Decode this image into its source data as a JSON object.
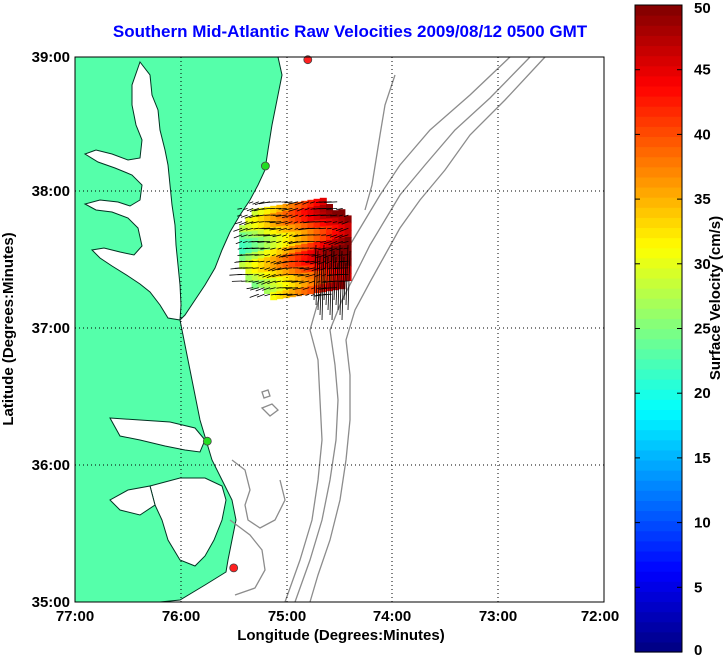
{
  "title": "Southern Mid-Atlantic Raw Velocities 2009/08/12 0500 GMT",
  "axes": {
    "xlabel": "Longitude (Degrees:Minutes)",
    "ylabel": "Latitude (Degrees:Minutes)",
    "x_ticks": [
      "77:00",
      "76:00",
      "75:00",
      "74:00",
      "73:00",
      "72:00"
    ],
    "y_ticks": [
      "39:00",
      "38:00",
      "37:00",
      "36:00",
      "35:00"
    ],
    "grid": "dotted"
  },
  "colorbar": {
    "label": "Surface Velocity (cm/s)",
    "ticks": [
      "0",
      "5",
      "10",
      "15",
      "20",
      "25",
      "30",
      "35",
      "40",
      "45",
      "50"
    ],
    "min": 0,
    "max": 50
  },
  "colors": {
    "land": "#55ffaa",
    "coastline": "#003322",
    "bathymetry": "#8c8c8c",
    "title": "#0000ff",
    "station_green": "#22dd22",
    "station_red": "#ff2020"
  },
  "stations": [
    {
      "lon": -74.8,
      "lat": 38.98,
      "color": "red"
    },
    {
      "lon": -75.2,
      "lat": 38.2,
      "color": "green"
    },
    {
      "lon": -75.75,
      "lat": 36.18,
      "color": "green"
    },
    {
      "lon": -75.5,
      "lat": 35.25,
      "color": "red"
    }
  ]
}
